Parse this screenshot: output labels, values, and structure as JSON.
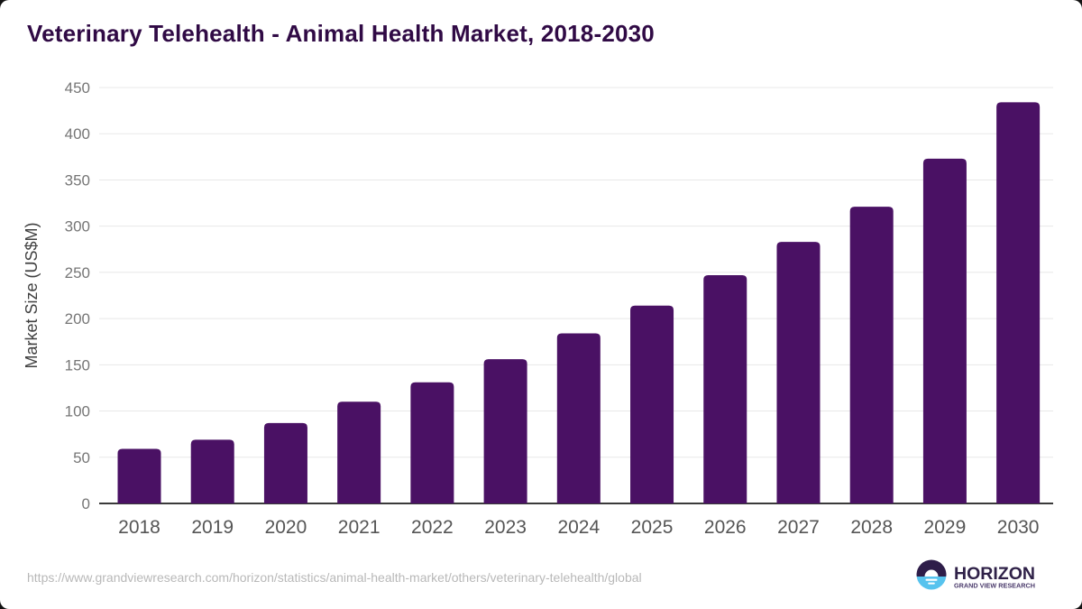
{
  "title": "Veterinary Telehealth - Animal Health Market, 2018-2030",
  "source_url": "https://www.grandviewresearch.com/horizon/statistics/animal-health-market/others/veterinary-telehealth/global",
  "logo": {
    "icon": "sunrise-horizon-icon",
    "brand": "HORIZON",
    "tagline": "GRAND VIEW RESEARCH",
    "icon_top_color": "#2e1d49",
    "icon_bottom_color": "#57c3ee",
    "brand_color": "#2f2148",
    "tagline_color": "#4a3a6b"
  },
  "chart_data": {
    "type": "bar",
    "title": "Veterinary Telehealth - Animal Health Market, 2018-2030",
    "categories": [
      "2018",
      "2019",
      "2020",
      "2021",
      "2022",
      "2023",
      "2024",
      "2025",
      "2026",
      "2027",
      "2028",
      "2029",
      "2030"
    ],
    "values": [
      59,
      69,
      87,
      110,
      131,
      156,
      184,
      214,
      247,
      283,
      321,
      373,
      434
    ],
    "xlabel": "",
    "ylabel": "Market Size (US$M)",
    "ylim": [
      0,
      450
    ],
    "ytick_interval": 50,
    "grid": true,
    "legend": false,
    "bar_color": "#4a1164",
    "gridline_color": "#e8e8e8",
    "axis_line_color": "#3a3a3a",
    "ytick_text_color": "#767676",
    "xtick_text_color": "#555555",
    "ylabel_color": "#404040"
  }
}
